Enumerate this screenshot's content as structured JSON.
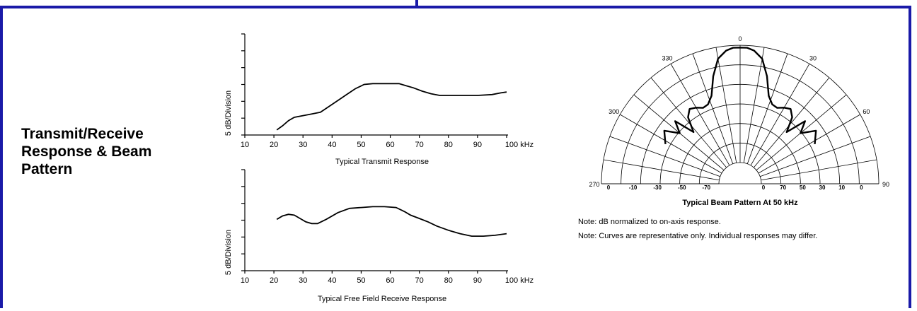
{
  "section": {
    "title_lines": [
      "Transmit/Receive",
      "Response & Beam",
      "Pattern"
    ]
  },
  "charts": [
    {
      "type": "line",
      "title": "Typical Transmit Response",
      "ylabel": "5 dB/Division",
      "x_ticks": [
        "10",
        "20",
        "30",
        "40",
        "50",
        "60",
        "70",
        "80",
        "90",
        "100 kHz"
      ],
      "x": [
        21,
        23,
        25,
        27,
        30,
        33,
        36,
        39,
        42,
        45,
        48,
        51,
        54,
        57,
        60,
        63,
        65,
        68,
        71,
        74,
        77,
        80,
        85,
        90,
        95,
        98,
        100
      ],
      "y": [
        0.3,
        0.55,
        0.85,
        1.05,
        1.15,
        1.25,
        1.35,
        1.7,
        2.05,
        2.4,
        2.75,
        3.0,
        3.05,
        3.05,
        3.05,
        3.05,
        2.95,
        2.8,
        2.6,
        2.45,
        2.35,
        2.35,
        2.35,
        2.35,
        2.4,
        2.5,
        2.55
      ],
      "y_divisions": 6,
      "xlim": [
        10,
        100
      ]
    },
    {
      "type": "line",
      "title": "Typical Free Field Receive Response",
      "ylabel": "5 dB/Division",
      "x_ticks": [
        "10",
        "20",
        "30",
        "40",
        "50",
        "60",
        "70",
        "80",
        "90",
        "100 kHz"
      ],
      "x": [
        21,
        23,
        25,
        27,
        29,
        31,
        33,
        35,
        38,
        42,
        46,
        50,
        54,
        58,
        62,
        65,
        67,
        70,
        73,
        76,
        80,
        84,
        88,
        92,
        96,
        100
      ],
      "y": [
        3.05,
        3.25,
        3.35,
        3.3,
        3.1,
        2.9,
        2.8,
        2.8,
        3.05,
        3.45,
        3.7,
        3.75,
        3.8,
        3.8,
        3.75,
        3.5,
        3.3,
        3.1,
        2.9,
        2.65,
        2.4,
        2.2,
        2.05,
        2.05,
        2.1,
        2.2
      ],
      "y_divisions": 6,
      "xlim": [
        10,
        100
      ]
    }
  ],
  "beam": {
    "title": "Typical Beam Pattern At 50 kHz",
    "angle_labels": [
      "0",
      "30",
      "60",
      "90",
      "270",
      "300",
      "330"
    ],
    "db_labels_left": [
      "0",
      "-10",
      "-30",
      "-50",
      "-70"
    ],
    "db_labels_right": [
      "0",
      "70",
      "50",
      "30",
      "10",
      "0"
    ],
    "pattern_angles": [
      -62,
      -55,
      -50,
      -46,
      -42,
      -38,
      -34,
      -30,
      -26,
      -22,
      -18,
      -14,
      -10,
      -6,
      -3,
      0,
      3,
      6,
      10,
      14,
      18,
      22,
      26,
      30,
      34,
      38,
      42,
      46,
      50,
      55,
      62
    ],
    "pattern_levels": [
      0.55,
      0.62,
      0.5,
      0.6,
      0.42,
      0.55,
      0.6,
      0.58,
      0.55,
      0.56,
      0.62,
      0.78,
      0.92,
      0.98,
      1.0,
      1.0,
      1.0,
      0.98,
      0.92,
      0.78,
      0.62,
      0.56,
      0.55,
      0.58,
      0.6,
      0.55,
      0.42,
      0.6,
      0.5,
      0.62,
      0.55
    ]
  },
  "notes": [
    "Note: dB normalized to on-axis response.",
    "Note: Curves are representative only. Individual responses may differ."
  ]
}
